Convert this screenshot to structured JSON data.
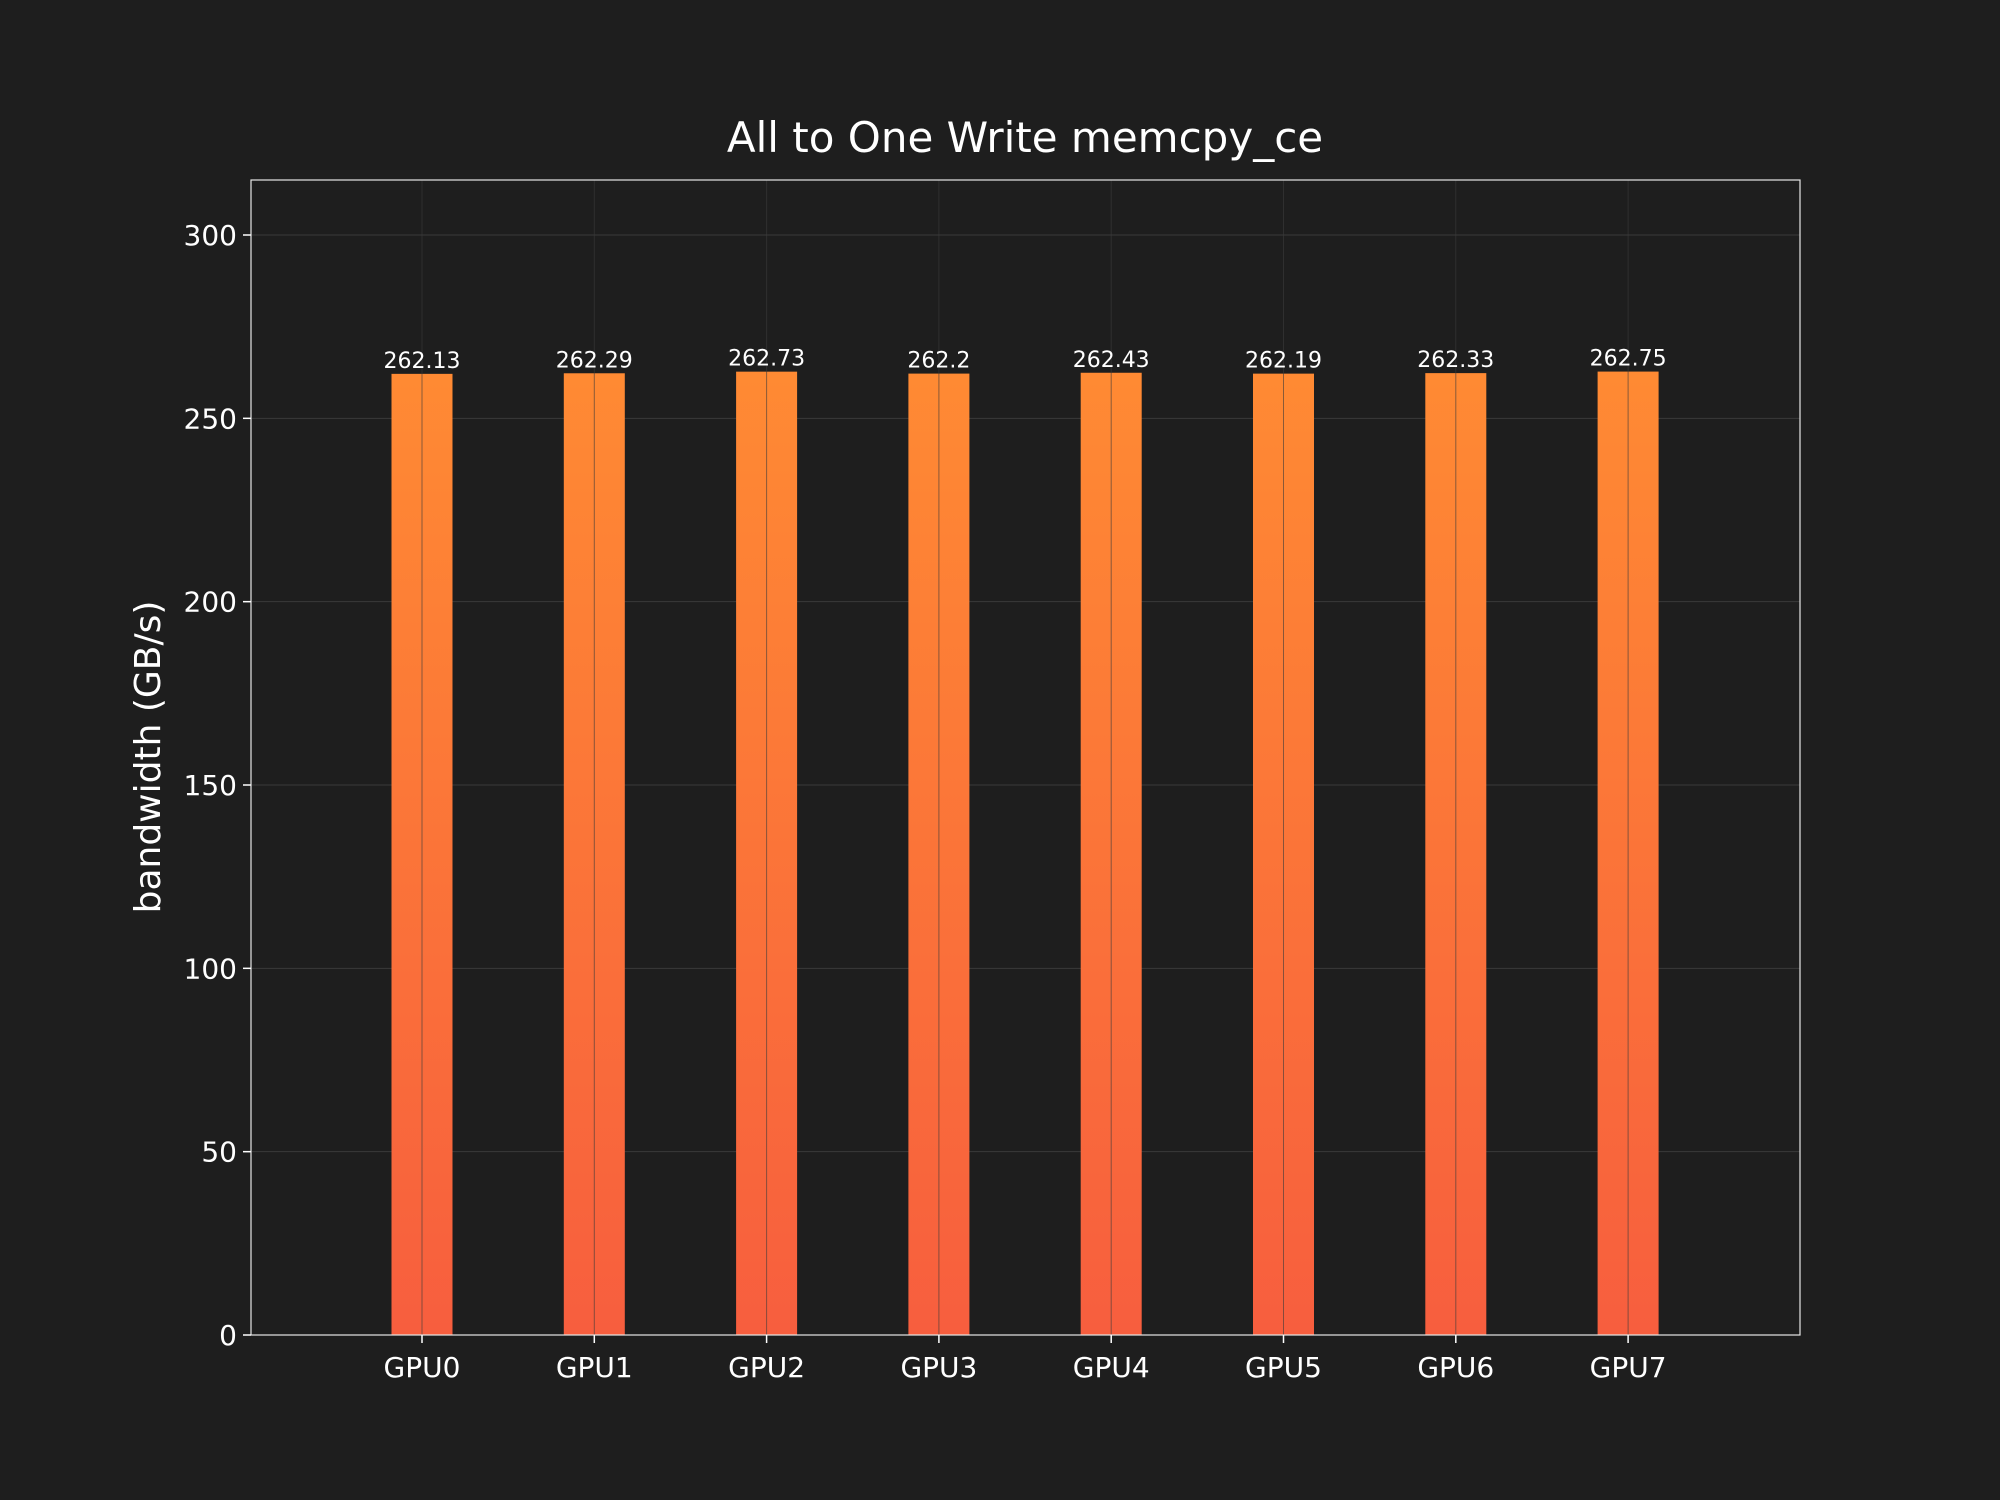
{
  "chart_data": {
    "type": "bar",
    "title": "All to One Write memcpy_ce",
    "xlabel": "",
    "ylabel": "bandwidth (GB/s)",
    "categories": [
      "GPU0",
      "GPU1",
      "GPU2",
      "GPU3",
      "GPU4",
      "GPU5",
      "GPU6",
      "GPU7"
    ],
    "values": [
      262.13,
      262.29,
      262.73,
      262.2,
      262.43,
      262.19,
      262.33,
      262.75
    ],
    "value_labels": [
      "262.13",
      "262.29",
      "262.73",
      "262.2",
      "262.43",
      "262.19",
      "262.33",
      "262.75"
    ],
    "ylim": [
      0,
      315
    ],
    "yticks": [
      0,
      50,
      100,
      150,
      200,
      250,
      300
    ],
    "ytick_labels": [
      "0",
      "50",
      "100",
      "150",
      "200",
      "250",
      "300"
    ],
    "grid": true,
    "colors": {
      "background": "#1e1e1e",
      "bar_top": "#ff8a33",
      "bar_bottom": "#f75e3e",
      "text": "#ffffff"
    }
  }
}
